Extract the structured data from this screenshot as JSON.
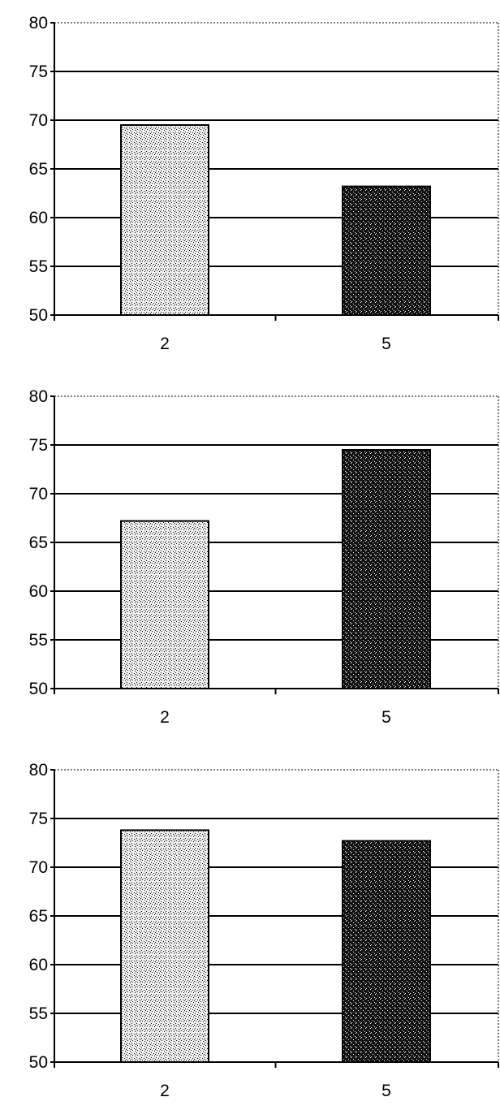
{
  "chart_data": [
    {
      "type": "bar",
      "categories": [
        "2",
        "5"
      ],
      "values": [
        69.5,
        63.2
      ],
      "ylim": [
        50,
        80
      ],
      "yticks": [
        50,
        55,
        60,
        65,
        70,
        75,
        80
      ],
      "grid": true
    },
    {
      "type": "bar",
      "categories": [
        "2",
        "5"
      ],
      "values": [
        67.2,
        74.5
      ],
      "ylim": [
        50,
        80
      ],
      "yticks": [
        50,
        55,
        60,
        65,
        70,
        75,
        80
      ],
      "grid": true
    },
    {
      "type": "bar",
      "categories": [
        "2",
        "5"
      ],
      "values": [
        73.8,
        72.7
      ],
      "ylim": [
        50,
        80
      ],
      "yticks": [
        50,
        55,
        60,
        65,
        70,
        75,
        80
      ],
      "grid": true
    }
  ],
  "colors": {
    "bar_light": "#d9d9d9",
    "bar_dark": "#333333",
    "grid": "#000000"
  }
}
